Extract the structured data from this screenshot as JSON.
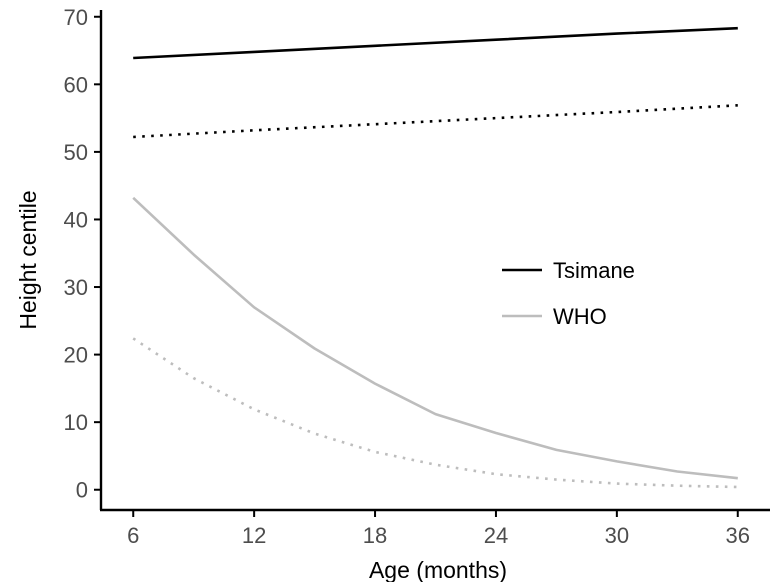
{
  "chart_data": {
    "type": "line",
    "title": "",
    "xlabel": "Age (months)",
    "ylabel": "Height centile",
    "xlim": [
      4.4,
      37.6
    ],
    "ylim": [
      -3,
      71
    ],
    "xticks": [
      6,
      12,
      18,
      24,
      30,
      36
    ],
    "xtick_labels": [
      "6",
      "12",
      "18",
      "24",
      "30",
      "36"
    ],
    "yticks": [
      0,
      10,
      20,
      30,
      40,
      50,
      60,
      70
    ],
    "ytick_labels": [
      "0",
      "10",
      "20",
      "30",
      "40",
      "50",
      "60",
      "70"
    ],
    "grid": false,
    "legend_position": "center-right",
    "legend": [
      {
        "name": "Tsimane",
        "color": "#000000"
      },
      {
        "name": "WHO",
        "color": "#bdbdbd"
      }
    ],
    "series": [
      {
        "group": "Tsimane",
        "style": "solid",
        "color": "#000000",
        "x": [
          6,
          12,
          18,
          24,
          30,
          36
        ],
        "y": [
          63.9,
          64.8,
          65.7,
          66.6,
          67.5,
          68.3
        ]
      },
      {
        "group": "Tsimane",
        "style": "dotted",
        "color": "#000000",
        "x": [
          6,
          12,
          18,
          24,
          30,
          36
        ],
        "y": [
          52.2,
          53.2,
          54.1,
          55.0,
          55.9,
          56.9
        ]
      },
      {
        "group": "WHO",
        "style": "solid",
        "color": "#bdbdbd",
        "x": [
          6,
          9,
          12,
          15,
          18,
          21,
          24,
          27,
          30,
          33,
          36
        ],
        "y": [
          43.2,
          34.8,
          27.0,
          20.9,
          15.7,
          11.2,
          8.4,
          5.9,
          4.2,
          2.7,
          1.7
        ]
      },
      {
        "group": "WHO",
        "style": "dotted",
        "color": "#bdbdbd",
        "x": [
          6,
          9,
          12,
          15,
          18,
          21,
          24,
          27,
          30,
          33,
          36
        ],
        "y": [
          22.4,
          16.5,
          11.9,
          8.3,
          5.6,
          3.7,
          2.3,
          1.5,
          0.9,
          0.6,
          0.4
        ]
      }
    ]
  }
}
